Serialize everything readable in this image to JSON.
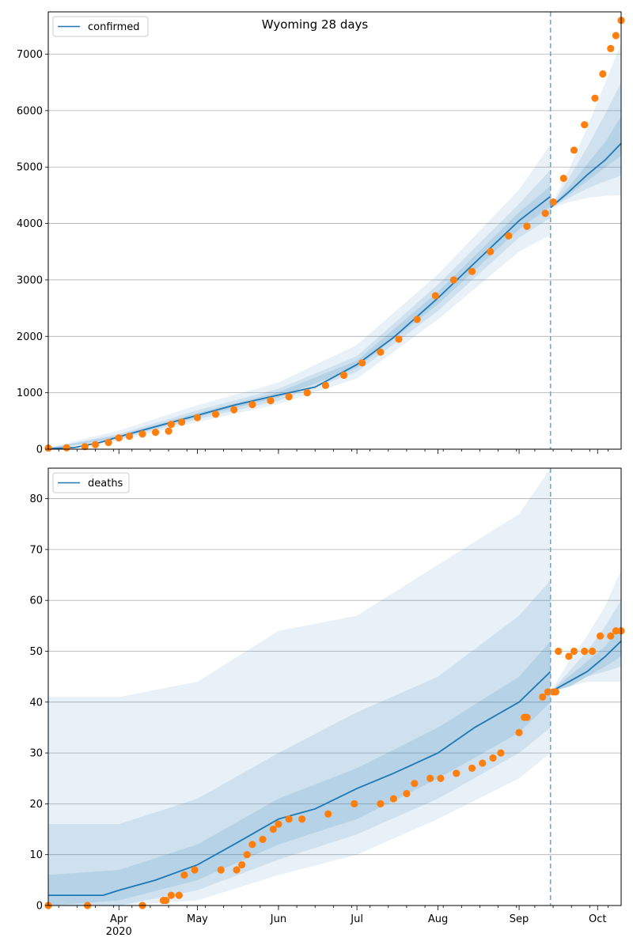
{
  "chart_data": [
    {
      "type": "line",
      "title": "Wyoming 28 days",
      "xlabel": "",
      "ylabel": "",
      "x_range": [
        "2020-03-05",
        "2020-10-10"
      ],
      "ylim": [
        0,
        7750
      ],
      "yticks": [
        0,
        1000,
        2000,
        3000,
        4000,
        5000,
        6000,
        7000
      ],
      "grid": "horizontal",
      "legend": {
        "position": "top-left",
        "entries": [
          "confirmed"
        ]
      },
      "forecast_start": "2020-09-13",
      "series": [
        {
          "name": "confirmed",
          "kind": "model-line",
          "segments": [
            {
              "x": [
                "2020-03-05",
                "2020-03-15",
                "2020-03-25",
                "2020-04-01",
                "2020-04-15",
                "2020-05-01",
                "2020-05-15",
                "2020-06-01",
                "2020-06-15",
                "2020-07-01",
                "2020-07-15",
                "2020-08-01",
                "2020-08-15",
                "2020-09-01",
                "2020-09-13"
              ],
              "y": [
                10,
                30,
                120,
                220,
                400,
                600,
                780,
                960,
                1100,
                1500,
                1980,
                2680,
                3300,
                4050,
                4480
              ]
            },
            {
              "x": [
                "2020-09-13",
                "2020-09-20",
                "2020-09-27",
                "2020-10-04",
                "2020-10-10"
              ],
              "y": [
                4280,
                4560,
                4860,
                5130,
                5420
              ]
            }
          ],
          "bands": [
            {
              "level": "outer",
              "x": [
                "2020-03-05",
                "2020-04-01",
                "2020-05-01",
                "2020-06-01",
                "2020-07-01",
                "2020-08-01",
                "2020-09-01",
                "2020-09-13"
              ],
              "lower": [
                0,
                150,
                480,
                800,
                1250,
                2300,
                3500,
                3800
              ],
              "upper": [
                30,
                330,
                780,
                1180,
                1850,
                3100,
                4600,
                5400
              ]
            },
            {
              "level": "middle",
              "x": [
                "2020-03-05",
                "2020-04-01",
                "2020-05-01",
                "2020-06-01",
                "2020-07-01",
                "2020-08-01",
                "2020-09-01",
                "2020-09-13"
              ],
              "lower": [
                0,
                180,
                530,
                860,
                1370,
                2450,
                3750,
                4100
              ],
              "upper": [
                20,
                270,
                690,
                1070,
                1650,
                2920,
                4350,
                4950
              ]
            },
            {
              "level": "inner",
              "x": [
                "2020-03-05",
                "2020-04-01",
                "2020-05-01",
                "2020-06-01",
                "2020-07-01",
                "2020-08-01",
                "2020-09-01",
                "2020-09-13"
              ],
              "lower": [
                5,
                200,
                570,
                920,
                1440,
                2570,
                3900,
                4300
              ],
              "upper": [
                15,
                245,
                640,
                1010,
                1570,
                2790,
                4200,
                4660
              ]
            },
            {
              "level": "outer",
              "x": [
                "2020-09-13",
                "2020-09-20",
                "2020-09-27",
                "2020-10-04",
                "2020-10-10"
              ],
              "lower": [
                4260,
                4380,
                4450,
                4490,
                4500
              ],
              "upper": [
                4300,
                4950,
                5700,
                6500,
                7200
              ]
            },
            {
              "level": "middle",
              "x": [
                "2020-09-13",
                "2020-09-20",
                "2020-09-27",
                "2020-10-04",
                "2020-10-10"
              ],
              "lower": [
                4270,
                4450,
                4620,
                4750,
                4850
              ],
              "upper": [
                4290,
                4800,
                5350,
                5950,
                6500
              ]
            },
            {
              "level": "inner",
              "x": [
                "2020-09-13",
                "2020-09-20",
                "2020-09-27",
                "2020-10-04",
                "2020-10-10"
              ],
              "lower": [
                4275,
                4510,
                4750,
                5000,
                5200
              ],
              "upper": [
                4285,
                4650,
                5050,
                5450,
                5900
              ]
            }
          ]
        },
        {
          "name": "",
          "kind": "observed-points",
          "x": [
            "2020-03-05",
            "2020-03-12",
            "2020-03-19",
            "2020-03-23",
            "2020-03-28",
            "2020-04-01",
            "2020-04-05",
            "2020-04-10",
            "2020-04-15",
            "2020-04-20",
            "2020-04-21",
            "2020-04-25",
            "2020-05-01",
            "2020-05-08",
            "2020-05-15",
            "2020-05-22",
            "2020-05-29",
            "2020-06-05",
            "2020-06-12",
            "2020-06-19",
            "2020-06-26",
            "2020-07-03",
            "2020-07-10",
            "2020-07-17",
            "2020-07-24",
            "2020-07-31",
            "2020-08-07",
            "2020-08-14",
            "2020-08-21",
            "2020-08-28",
            "2020-09-04",
            "2020-09-11",
            "2020-09-14",
            "2020-09-18",
            "2020-09-22",
            "2020-09-26",
            "2020-09-30",
            "2020-10-03",
            "2020-10-06",
            "2020-10-08",
            "2020-10-10"
          ],
          "y": [
            20,
            25,
            45,
            80,
            120,
            200,
            230,
            270,
            300,
            320,
            440,
            480,
            560,
            620,
            700,
            790,
            860,
            930,
            1000,
            1130,
            1310,
            1530,
            1720,
            1950,
            2300,
            2720,
            3000,
            3150,
            3500,
            3780,
            3950,
            4180,
            4380,
            4800,
            5300,
            5750,
            6220,
            6650,
            7100,
            7330,
            7600
          ]
        }
      ]
    },
    {
      "type": "line",
      "title": "",
      "xlabel": "",
      "ylabel": "",
      "x_range": [
        "2020-03-05",
        "2020-10-10"
      ],
      "ylim": [
        0,
        86
      ],
      "yticks": [
        0,
        10,
        20,
        30,
        40,
        50,
        60,
        70,
        80
      ],
      "grid": "horizontal",
      "legend": {
        "position": "top-left",
        "entries": [
          "deaths"
        ]
      },
      "forecast_start": "2020-09-13",
      "xticks": [
        {
          "date": "2020-04-01",
          "label": "Apr",
          "sublabel": "2020"
        },
        {
          "date": "2020-05-01",
          "label": "May"
        },
        {
          "date": "2020-06-01",
          "label": "Jun"
        },
        {
          "date": "2020-07-01",
          "label": "Jul"
        },
        {
          "date": "2020-08-01",
          "label": "Aug"
        },
        {
          "date": "2020-09-01",
          "label": "Sep"
        },
        {
          "date": "2020-10-01",
          "label": "Oct"
        }
      ],
      "series": [
        {
          "name": "deaths",
          "kind": "model-line",
          "segments": [
            {
              "x": [
                "2020-03-05",
                "2020-03-26",
                "2020-04-01",
                "2020-04-15",
                "2020-05-01",
                "2020-05-15",
                "2020-06-01",
                "2020-06-15",
                "2020-07-01",
                "2020-07-15",
                "2020-08-01",
                "2020-08-15",
                "2020-09-01",
                "2020-09-13"
              ],
              "y": [
                2,
                2,
                3,
                5,
                8,
                12,
                17,
                19,
                23,
                26,
                30,
                35,
                40,
                46
              ]
            },
            {
              "x": [
                "2020-09-13",
                "2020-09-20",
                "2020-09-27",
                "2020-10-04",
                "2020-10-10"
              ],
              "y": [
                42,
                44,
                46,
                49,
                52
              ]
            }
          ],
          "bands": [
            {
              "level": "outer",
              "x": [
                "2020-03-05",
                "2020-04-01",
                "2020-05-01",
                "2020-06-01",
                "2020-07-01",
                "2020-08-01",
                "2020-09-01",
                "2020-09-13"
              ],
              "lower": [
                0,
                0,
                1,
                6,
                10,
                17,
                25,
                30
              ],
              "upper": [
                41,
                41,
                44,
                54,
                57,
                67,
                77,
                86
              ]
            },
            {
              "level": "middle",
              "x": [
                "2020-03-05",
                "2020-04-01",
                "2020-05-01",
                "2020-06-01",
                "2020-07-01",
                "2020-08-01",
                "2020-09-01",
                "2020-09-13"
              ],
              "lower": [
                0,
                0,
                3,
                9,
                14,
                21,
                30,
                35
              ],
              "upper": [
                16,
                16,
                21,
                30,
                38,
                45,
                57,
                64
              ]
            },
            {
              "level": "inner",
              "x": [
                "2020-03-05",
                "2020-04-01",
                "2020-05-01",
                "2020-06-01",
                "2020-07-01",
                "2020-08-01",
                "2020-09-01",
                "2020-09-13"
              ],
              "lower": [
                0,
                1,
                5,
                12,
                17,
                25,
                34,
                40
              ],
              "upper": [
                6,
                7,
                12,
                21,
                27,
                35,
                45,
                52
              ]
            },
            {
              "level": "outer",
              "x": [
                "2020-09-13",
                "2020-09-20",
                "2020-09-27",
                "2020-10-04",
                "2020-10-10"
              ],
              "lower": [
                42,
                43,
                44,
                44,
                44
              ],
              "upper": [
                42,
                48,
                53,
                59,
                66
              ]
            },
            {
              "level": "middle",
              "x": [
                "2020-09-13",
                "2020-09-20",
                "2020-09-27",
                "2020-10-04",
                "2020-10-10"
              ],
              "lower": [
                42,
                43,
                45,
                46,
                47
              ],
              "upper": [
                42,
                46,
                50,
                55,
                60
              ]
            },
            {
              "level": "inner",
              "x": [
                "2020-09-13",
                "2020-09-20",
                "2020-09-27",
                "2020-10-04",
                "2020-10-10"
              ],
              "lower": [
                42,
                43,
                45,
                47,
                49
              ],
              "upper": [
                42,
                45,
                48,
                51,
                55
              ]
            }
          ]
        },
        {
          "name": "",
          "kind": "observed-points",
          "x": [
            "2020-03-05",
            "2020-03-20",
            "2020-04-10",
            "2020-04-18",
            "2020-04-19",
            "2020-04-21",
            "2020-04-24",
            "2020-04-26",
            "2020-04-30",
            "2020-05-10",
            "2020-05-16",
            "2020-05-18",
            "2020-05-20",
            "2020-05-22",
            "2020-05-26",
            "2020-05-30",
            "2020-06-01",
            "2020-06-05",
            "2020-06-10",
            "2020-06-20",
            "2020-06-30",
            "2020-07-10",
            "2020-07-15",
            "2020-07-20",
            "2020-07-23",
            "2020-07-29",
            "2020-08-02",
            "2020-08-08",
            "2020-08-14",
            "2020-08-18",
            "2020-08-22",
            "2020-08-25",
            "2020-09-01",
            "2020-09-03",
            "2020-09-04",
            "2020-09-10",
            "2020-09-12",
            "2020-09-14",
            "2020-09-15",
            "2020-09-16",
            "2020-09-20",
            "2020-09-22",
            "2020-09-26",
            "2020-09-29",
            "2020-10-02",
            "2020-10-06",
            "2020-10-08",
            "2020-10-10"
          ],
          "y": [
            0,
            0,
            0,
            1,
            1,
            2,
            2,
            6,
            7,
            7,
            7,
            8,
            10,
            12,
            13,
            15,
            16,
            17,
            17,
            18,
            20,
            20,
            21,
            22,
            24,
            25,
            25,
            26,
            27,
            28,
            29,
            30,
            34,
            37,
            37,
            41,
            42,
            42,
            42,
            50,
            49,
            50,
            50,
            50,
            53,
            53,
            54,
            54
          ]
        }
      ]
    }
  ]
}
